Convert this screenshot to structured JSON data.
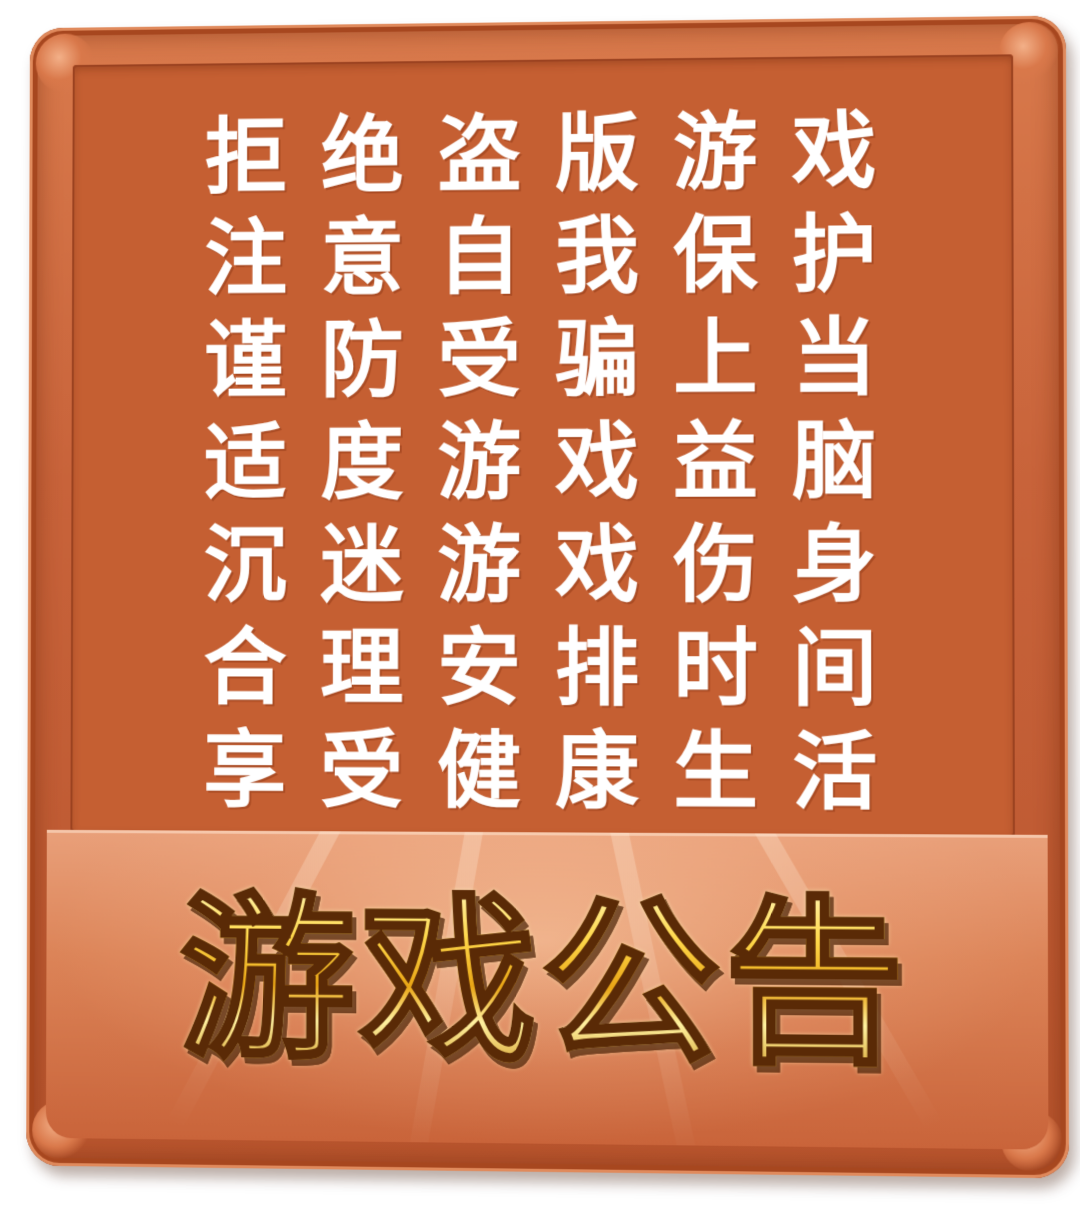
{
  "notice": {
    "lines": [
      [
        "拒",
        "绝",
        "盗",
        "版",
        "游",
        "戏"
      ],
      [
        "注",
        "意",
        "自",
        "我",
        "保",
        "护"
      ],
      [
        "谨",
        "防",
        "受",
        "骗",
        "上",
        "当"
      ],
      [
        "适",
        "度",
        "游",
        "戏",
        "益",
        "脑"
      ],
      [
        "沉",
        "迷",
        "游",
        "戏",
        "伤",
        "身"
      ],
      [
        "合",
        "理",
        "安",
        "排",
        "时",
        "间"
      ],
      [
        "享",
        "受",
        "健",
        "康",
        "生",
        "活"
      ]
    ]
  },
  "title": "游戏公告",
  "colors": {
    "frame": "#c8633a",
    "panel": "#c55f32",
    "notice_text": "#ffffff",
    "title_gold": "#f2c53a",
    "title_outline": "#5a2a06"
  }
}
